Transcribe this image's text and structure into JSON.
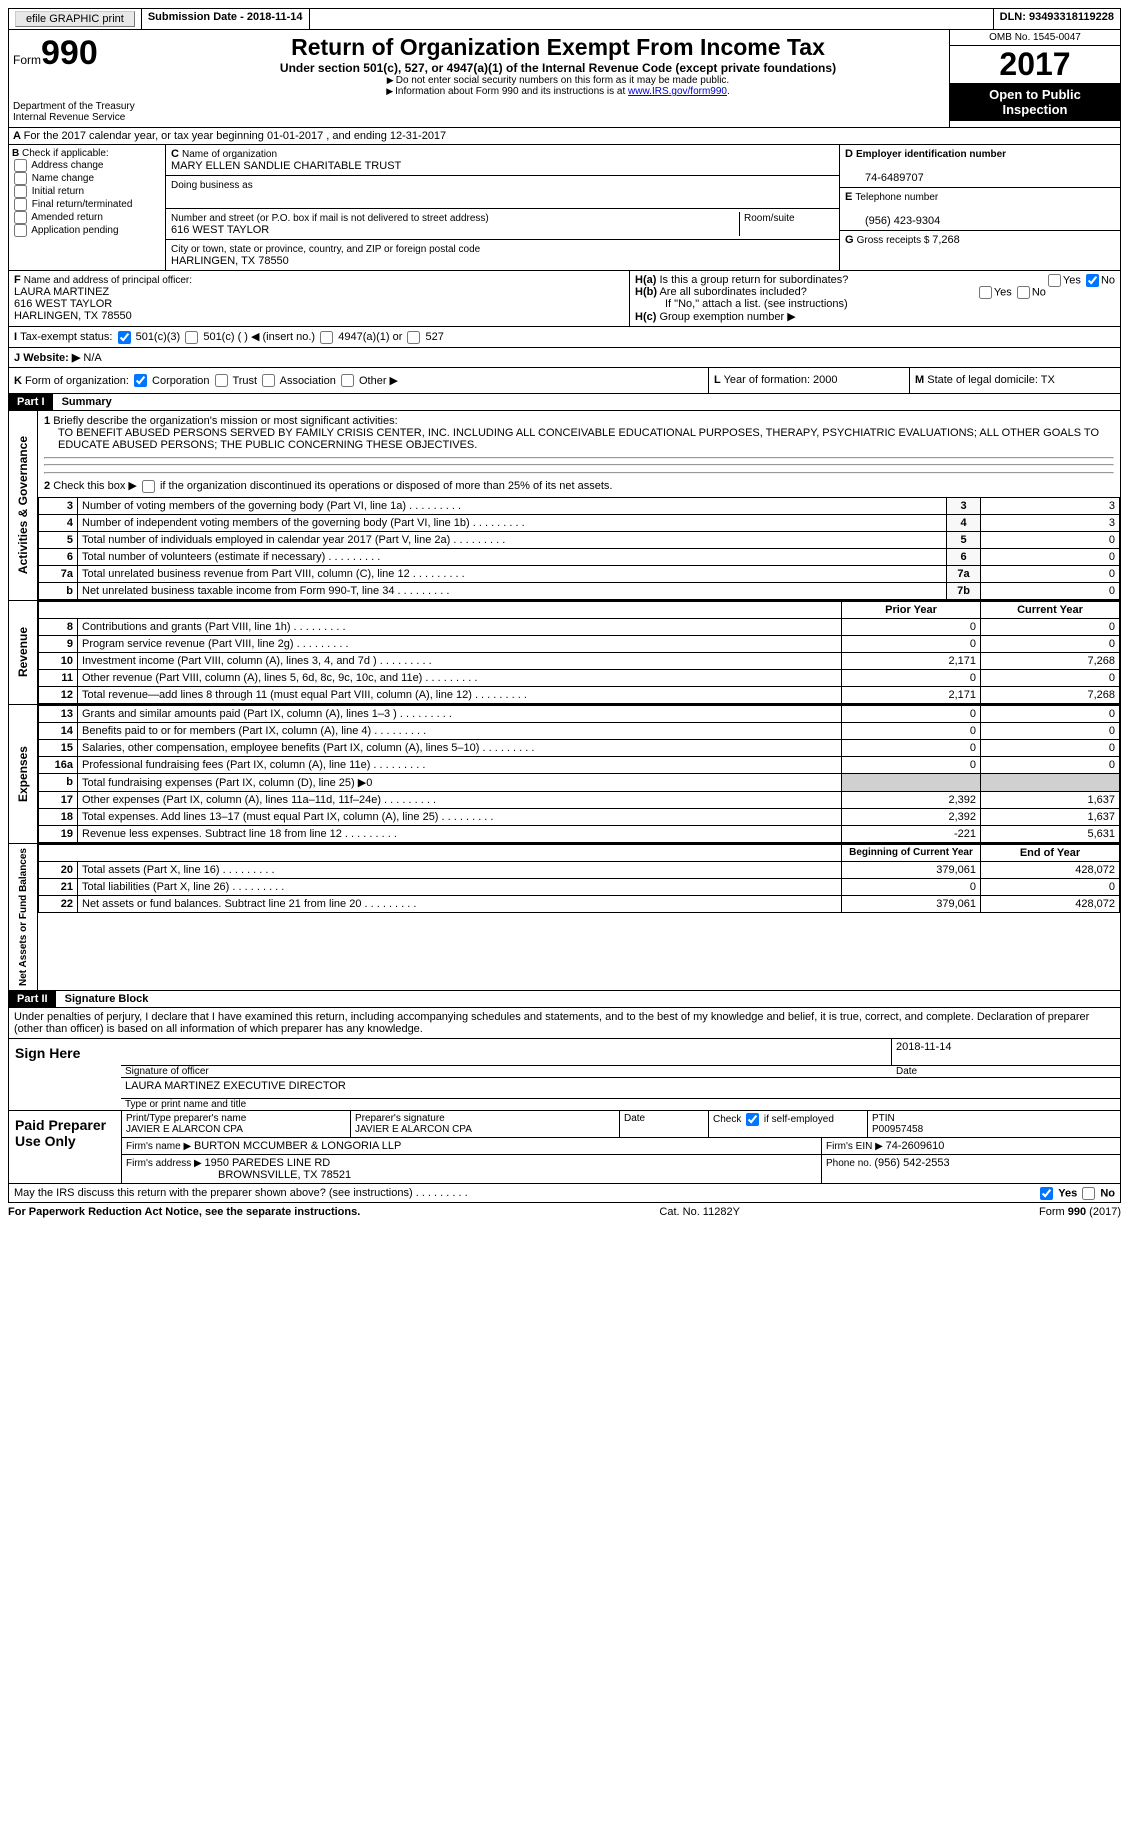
{
  "topbar": {
    "efile": "efile GRAPHIC print",
    "submission_label": "Submission Date - ",
    "submission_date": "2018-11-14",
    "dln_label": "DLN: ",
    "dln": "93493318119228"
  },
  "header": {
    "form_word": "Form",
    "form_number": "990",
    "dept1": "Department of the Treasury",
    "dept2": "Internal Revenue Service",
    "title": "Return of Organization Exempt From Income Tax",
    "subtitle": "Under section 501(c), 527, or 4947(a)(1) of the Internal Revenue Code (except private foundations)",
    "note1": "Do not enter social security numbers on this form as it may be made public.",
    "note2_a": "Information about Form 990 and its instructions is at ",
    "note2_link": "www.IRS.gov/form990",
    "omb": "OMB No. 1545-0047",
    "year": "2017",
    "open1": "Open to Public",
    "open2": "Inspection"
  },
  "line_a": "For the 2017 calendar year, or tax year beginning 01-01-2017   , and ending 12-31-2017",
  "col_b": {
    "heading": "Check if applicable:",
    "opts": [
      "Address change",
      "Name change",
      "Initial return",
      "Final return/terminated",
      "Amended return",
      "Application pending"
    ]
  },
  "col_c": {
    "name_label": "Name of organization",
    "name": "MARY ELLEN SANDLIE CHARITABLE TRUST",
    "dba_label": "Doing business as",
    "street_label": "Number and street (or P.O. box if mail is not delivered to street address)",
    "room_label": "Room/suite",
    "street": "616 WEST TAYLOR",
    "city_label": "City or town, state or province, country, and ZIP or foreign postal code",
    "city": "HARLINGEN, TX  78550"
  },
  "col_d": {
    "ein_label": "Employer identification number",
    "ein": "74-6489707",
    "phone_label": "Telephone number",
    "phone": "(956) 423-9304",
    "gross_label": "Gross receipts $ ",
    "gross": "7,268"
  },
  "officer": {
    "label": "Name and address of principal officer:",
    "name": "LAURA MARTINEZ",
    "street": "616 WEST TAYLOR",
    "city": "HARLINGEN, TX  78550"
  },
  "h": {
    "ha": "Is this a group return for subordinates?",
    "hb": "Are all subordinates included?",
    "hb_note": "If \"No,\" attach a list. (see instructions)",
    "hc": "Group exemption number ▶",
    "yes": "Yes",
    "no": "No"
  },
  "status": {
    "label": "Tax-exempt status:",
    "o1": "501(c)(3)",
    "o2": "501(c) (   ) ◀ (insert no.)",
    "o3": "4947(a)(1) or",
    "o4": "527"
  },
  "website": {
    "label": "Website: ▶",
    "val": "N/A"
  },
  "form_k": {
    "label": "Form of organization:",
    "opts": [
      "Corporation",
      "Trust",
      "Association",
      "Other ▶"
    ]
  },
  "l_m": {
    "l": "Year of formation: 2000",
    "m": "State of legal domicile: TX"
  },
  "part1": {
    "label": "Part I",
    "title": "Summary",
    "mission_label": "Briefly describe the organization's mission or most significant activities:",
    "mission": "TO BENEFIT ABUSED PERSONS SERVED BY FAMILY CRISIS CENTER, INC. INCLUDING ALL CONCEIVABLE EDUCATIONAL PURPOSES, THERAPY, PSYCHIATRIC EVALUATIONS; ALL OTHER GOALS TO EDUCATE ABUSED PERSONS; THE PUBLIC CONCERNING THESE OBJECTIVES.",
    "line2": "Check this box ▶     if the organization discontinued its operations or disposed of more than 25% of its net assets.",
    "governance_label": "Activities & Governance",
    "revenue_label": "Revenue",
    "expenses_label": "Expenses",
    "netassets_label": "Net Assets or Fund Balances",
    "gov_lines": [
      {
        "n": "3",
        "t": "Number of voting members of the governing body (Part VI, line 1a)",
        "box": "3",
        "v": "3"
      },
      {
        "n": "4",
        "t": "Number of independent voting members of the governing body (Part VI, line 1b)",
        "box": "4",
        "v": "3"
      },
      {
        "n": "5",
        "t": "Total number of individuals employed in calendar year 2017 (Part V, line 2a)",
        "box": "5",
        "v": "0"
      },
      {
        "n": "6",
        "t": "Total number of volunteers (estimate if necessary)",
        "box": "6",
        "v": "0"
      },
      {
        "n": "7a",
        "t": "Total unrelated business revenue from Part VIII, column (C), line 12",
        "box": "7a",
        "v": "0"
      },
      {
        "n": "b",
        "t": "Net unrelated business taxable income from Form 990-T, line 34",
        "box": "7b",
        "v": "0"
      }
    ],
    "col_headers": {
      "prior": "Prior Year",
      "current": "Current Year",
      "begin": "Beginning of Current Year",
      "end": "End of Year"
    },
    "rev_lines": [
      {
        "n": "8",
        "t": "Contributions and grants (Part VIII, line 1h)",
        "p": "0",
        "c": "0"
      },
      {
        "n": "9",
        "t": "Program service revenue (Part VIII, line 2g)",
        "p": "0",
        "c": "0"
      },
      {
        "n": "10",
        "t": "Investment income (Part VIII, column (A), lines 3, 4, and 7d )",
        "p": "2,171",
        "c": "7,268"
      },
      {
        "n": "11",
        "t": "Other revenue (Part VIII, column (A), lines 5, 6d, 8c, 9c, 10c, and 11e)",
        "p": "0",
        "c": "0"
      },
      {
        "n": "12",
        "t": "Total revenue—add lines 8 through 11 (must equal Part VIII, column (A), line 12)",
        "p": "2,171",
        "c": "7,268"
      }
    ],
    "exp_lines": [
      {
        "n": "13",
        "t": "Grants and similar amounts paid (Part IX, column (A), lines 1–3 )",
        "p": "0",
        "c": "0"
      },
      {
        "n": "14",
        "t": "Benefits paid to or for members (Part IX, column (A), line 4)",
        "p": "0",
        "c": "0"
      },
      {
        "n": "15",
        "t": "Salaries, other compensation, employee benefits (Part IX, column (A), lines 5–10)",
        "p": "0",
        "c": "0"
      },
      {
        "n": "16a",
        "t": "Professional fundraising fees (Part IX, column (A), line 11e)",
        "p": "0",
        "c": "0"
      },
      {
        "n": "b",
        "t": "Total fundraising expenses (Part IX, column (D), line 25) ▶0",
        "shade": true
      },
      {
        "n": "17",
        "t": "Other expenses (Part IX, column (A), lines 11a–11d, 11f–24e)",
        "p": "2,392",
        "c": "1,637"
      },
      {
        "n": "18",
        "t": "Total expenses. Add lines 13–17 (must equal Part IX, column (A), line 25)",
        "p": "2,392",
        "c": "1,637"
      },
      {
        "n": "19",
        "t": "Revenue less expenses. Subtract line 18 from line 12",
        "p": "-221",
        "c": "5,631"
      }
    ],
    "net_lines": [
      {
        "n": "20",
        "t": "Total assets (Part X, line 16)",
        "p": "379,061",
        "c": "428,072"
      },
      {
        "n": "21",
        "t": "Total liabilities (Part X, line 26)",
        "p": "0",
        "c": "0"
      },
      {
        "n": "22",
        "t": "Net assets or fund balances. Subtract line 21 from line 20",
        "p": "379,061",
        "c": "428,072"
      }
    ]
  },
  "part2": {
    "label": "Part II",
    "title": "Signature Block",
    "perjury": "Under penalties of perjury, I declare that I have examined this return, including accompanying schedules and statements, and to the best of my knowledge and belief, it is true, correct, and complete. Declaration of preparer (other than officer) is based on all information of which preparer has any knowledge.",
    "sign_here": "Sign Here",
    "sig_officer": "Signature of officer",
    "sig_date": "2018-11-14",
    "date_label": "Date",
    "officer_name": "LAURA MARTINEZ EXECUTIVE DIRECTOR",
    "type_name": "Type or print name and title",
    "paid": "Paid Preparer Use Only",
    "prep_name_label": "Print/Type preparer's name",
    "prep_name": "JAVIER E ALARCON CPA",
    "prep_sig_label": "Preparer's signature",
    "prep_sig": "JAVIER E ALARCON CPA",
    "check_self": "Check         if self-employed",
    "ptin_label": "PTIN",
    "ptin": "P00957458",
    "firm_name_label": "Firm's name    ▶ ",
    "firm_name": "BURTON MCCUMBER & LONGORIA LLP",
    "firm_ein_label": "Firm's EIN ▶ ",
    "firm_ein": "74-2609610",
    "firm_addr_label": "Firm's address ▶ ",
    "firm_addr1": "1950 PAREDES LINE RD",
    "firm_addr2": "BROWNSVILLE, TX  78521",
    "firm_phone_label": "Phone no. ",
    "firm_phone": "(956) 542-2553",
    "discuss": "May the IRS discuss this return with the preparer shown above? (see instructions)"
  },
  "footer": {
    "left": "For Paperwork Reduction Act Notice, see the separate instructions.",
    "center": "Cat. No. 11282Y",
    "right": "Form 990 (2017)"
  }
}
